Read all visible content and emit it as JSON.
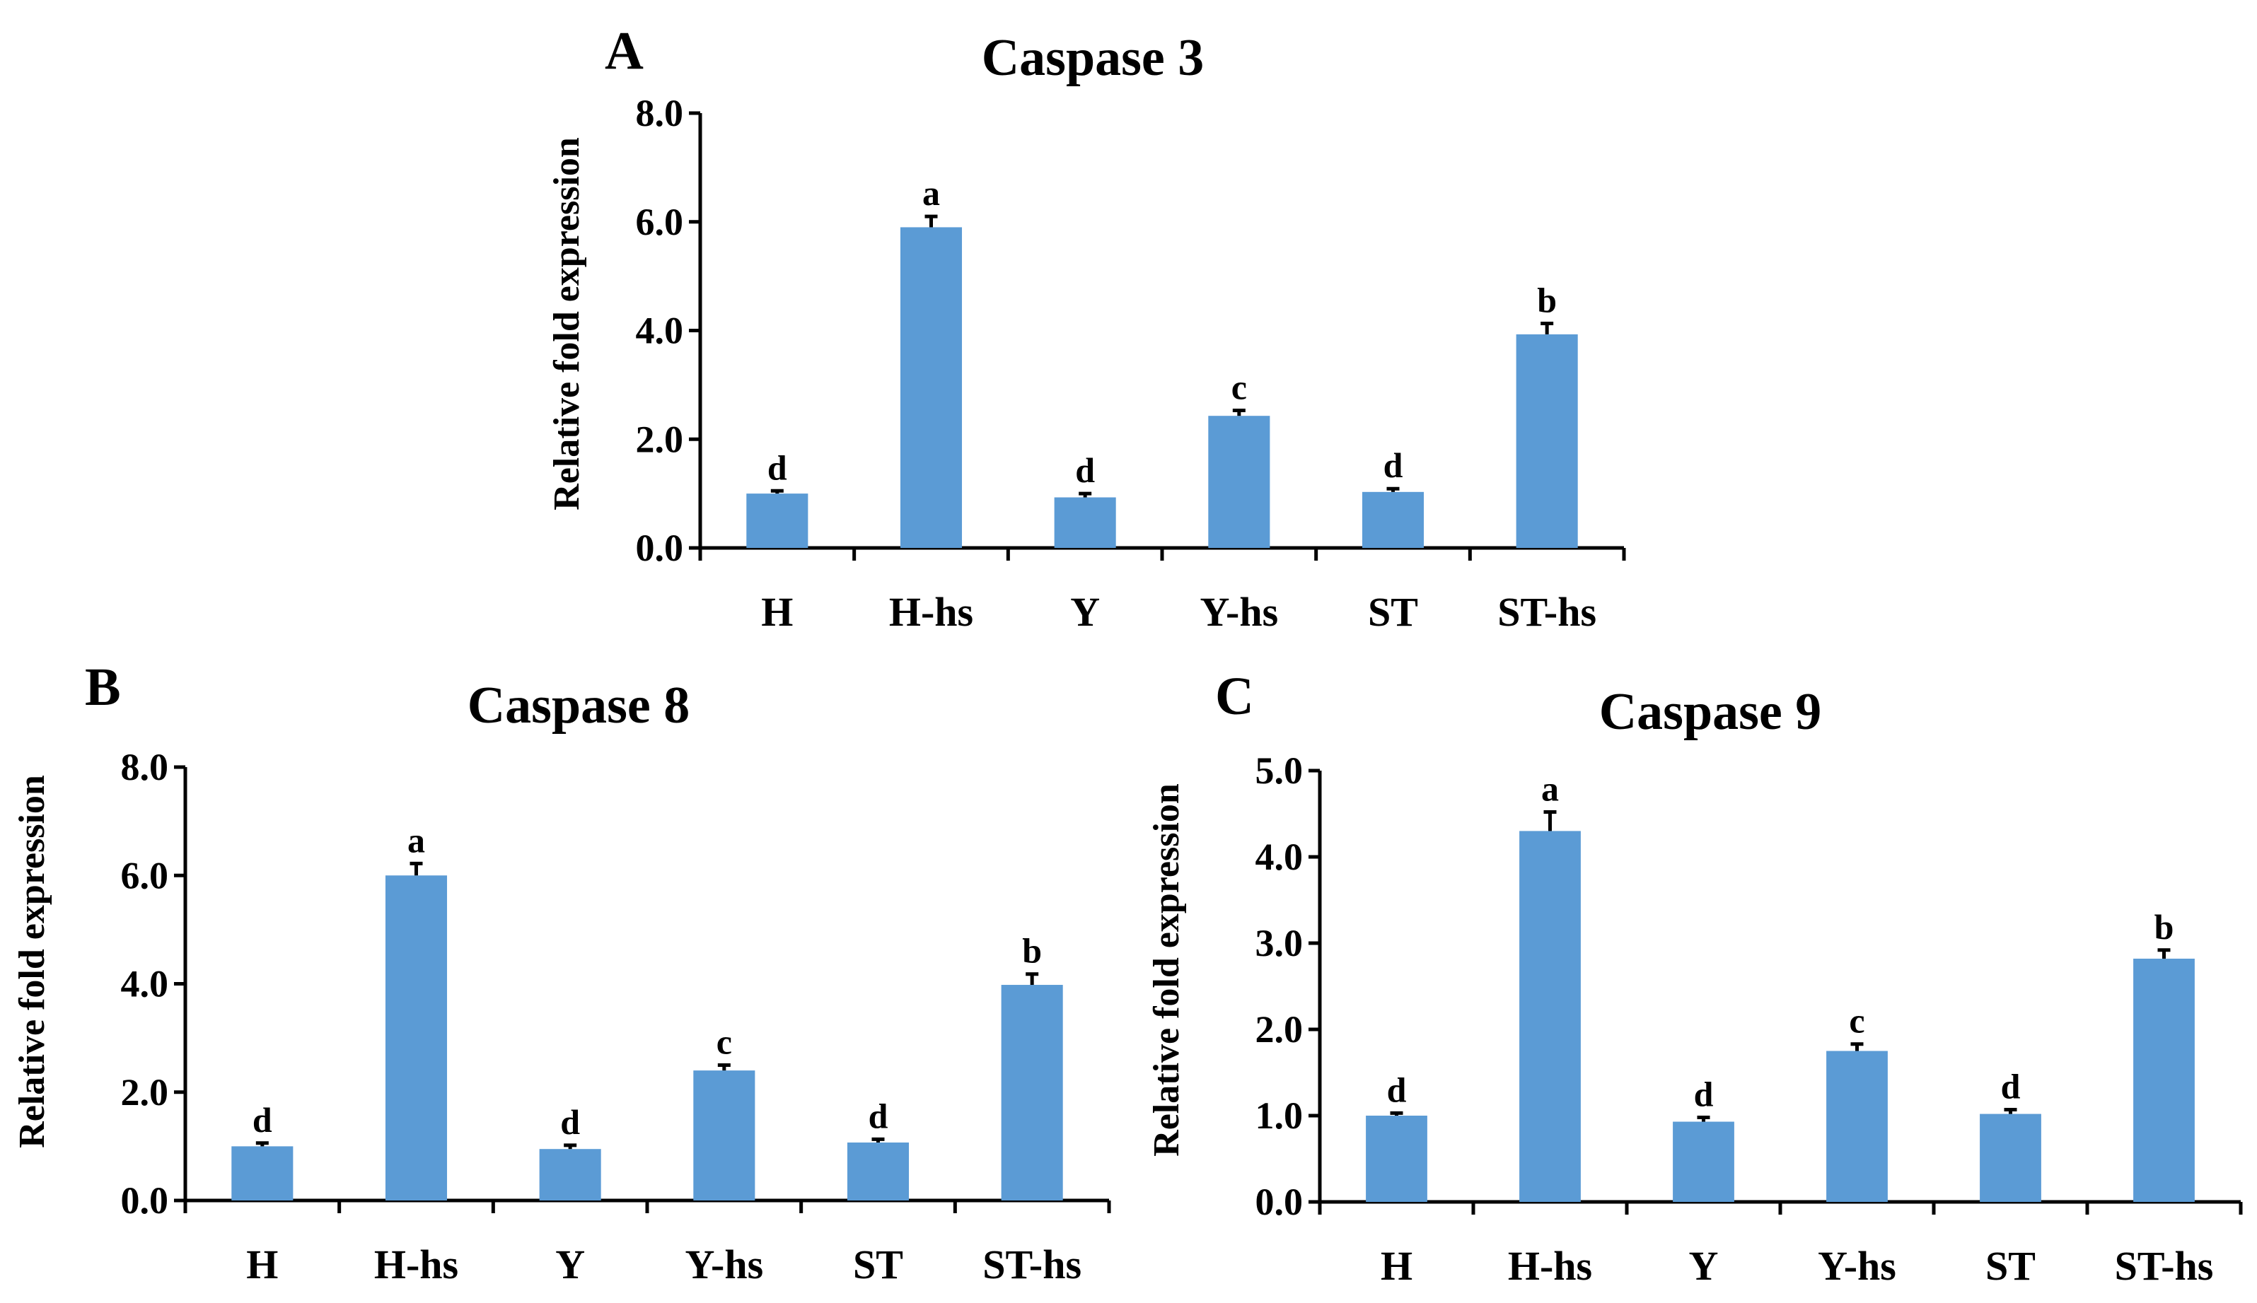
{
  "chart_data": [
    {
      "panel": "A",
      "type": "bar",
      "title": "Caspase 3",
      "ylabel": "Relative fold expression",
      "xlabel": "",
      "categories": [
        "H",
        "H-hs",
        "Y",
        "Y-hs",
        "ST",
        "ST-hs"
      ],
      "values": [
        1.0,
        5.9,
        0.93,
        2.43,
        1.03,
        3.93
      ],
      "errors": [
        0.05,
        0.2,
        0.07,
        0.1,
        0.06,
        0.2
      ],
      "significance": [
        "d",
        "a",
        "d",
        "c",
        "d",
        "b"
      ],
      "ylim": [
        0,
        8
      ],
      "yticks": [
        "0.0",
        "2.0",
        "4.0",
        "6.0",
        "8.0"
      ],
      "color": "#5b9bd5"
    },
    {
      "panel": "B",
      "type": "bar",
      "title": "Caspase 8",
      "ylabel": "Relative fold expression",
      "xlabel": "",
      "categories": [
        "H",
        "H-hs",
        "Y",
        "Y-hs",
        "ST",
        "ST-hs"
      ],
      "values": [
        1.0,
        6.0,
        0.95,
        2.4,
        1.07,
        3.98
      ],
      "errors": [
        0.06,
        0.22,
        0.07,
        0.1,
        0.06,
        0.2
      ],
      "significance": [
        "d",
        "a",
        "d",
        "c",
        "d",
        "b"
      ],
      "ylim": [
        0,
        8
      ],
      "yticks": [
        "0.0",
        "2.0",
        "4.0",
        "6.0",
        "8.0"
      ],
      "color": "#5b9bd5"
    },
    {
      "panel": "C",
      "type": "bar",
      "title": "Caspase 9",
      "ylabel": "Relative fold expression",
      "xlabel": "",
      "categories": [
        "H",
        "H-hs",
        "Y",
        "Y-hs",
        "ST",
        "ST-hs"
      ],
      "values": [
        1.0,
        4.3,
        0.93,
        1.75,
        1.02,
        2.82
      ],
      "errors": [
        0.03,
        0.22,
        0.05,
        0.08,
        0.05,
        0.1
      ],
      "significance": [
        "d",
        "a",
        "d",
        "c",
        "d",
        "b"
      ],
      "ylim": [
        0,
        5
      ],
      "yticks": [
        "0.0",
        "1.0",
        "2.0",
        "3.0",
        "4.0",
        "5.0"
      ],
      "color": "#5b9bd5"
    }
  ]
}
